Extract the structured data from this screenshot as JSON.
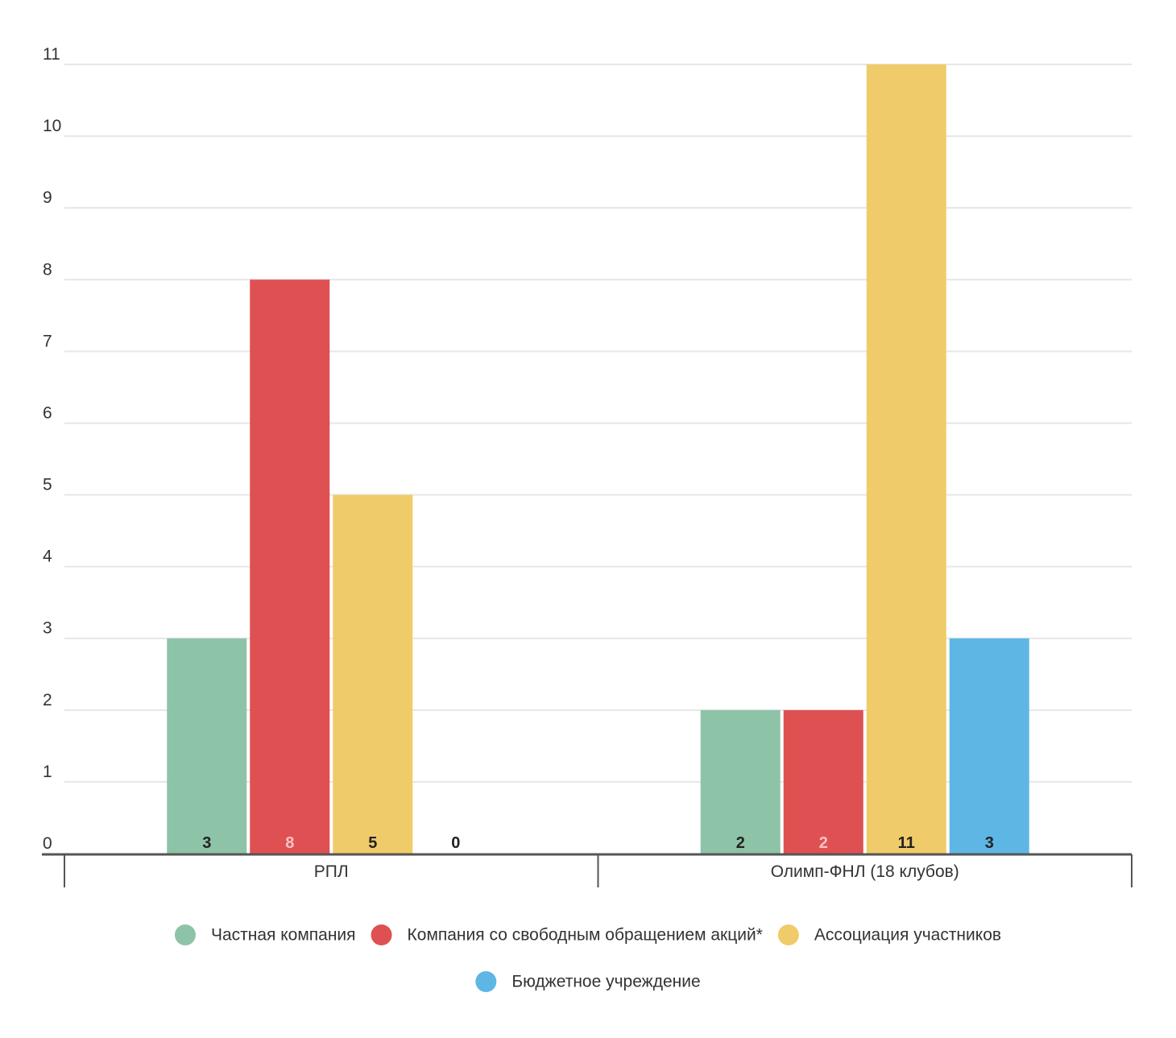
{
  "chart_data": {
    "type": "bar",
    "categories": [
      "РПЛ",
      "Олимп-ФНЛ (18 клубов)"
    ],
    "series": [
      {
        "name": "Частная компания",
        "values": [
          3,
          2
        ],
        "color": "#8dc3a7",
        "label_color": "#222222"
      },
      {
        "name": "Компания со свободным обращением акций*",
        "values": [
          8,
          2
        ],
        "color": "#df5052",
        "label_color": "#f6c4c4"
      },
      {
        "name": "Ассоциация участников",
        "values": [
          5,
          11
        ],
        "color": "#f0cb69",
        "label_color": "#222222"
      },
      {
        "name": "Бюджетное учреждение",
        "values": [
          0,
          3
        ],
        "color": "#5eb6e4",
        "label_color": "#222222"
      }
    ],
    "yticks": [
      "0",
      "1",
      "2",
      "3",
      "4",
      "5",
      "6",
      "7",
      "8",
      "9",
      "10",
      "11"
    ],
    "ylim": [
      0,
      11
    ],
    "grid": true,
    "legend_position": "bottom",
    "title": "",
    "xlabel": "",
    "ylabel": ""
  }
}
